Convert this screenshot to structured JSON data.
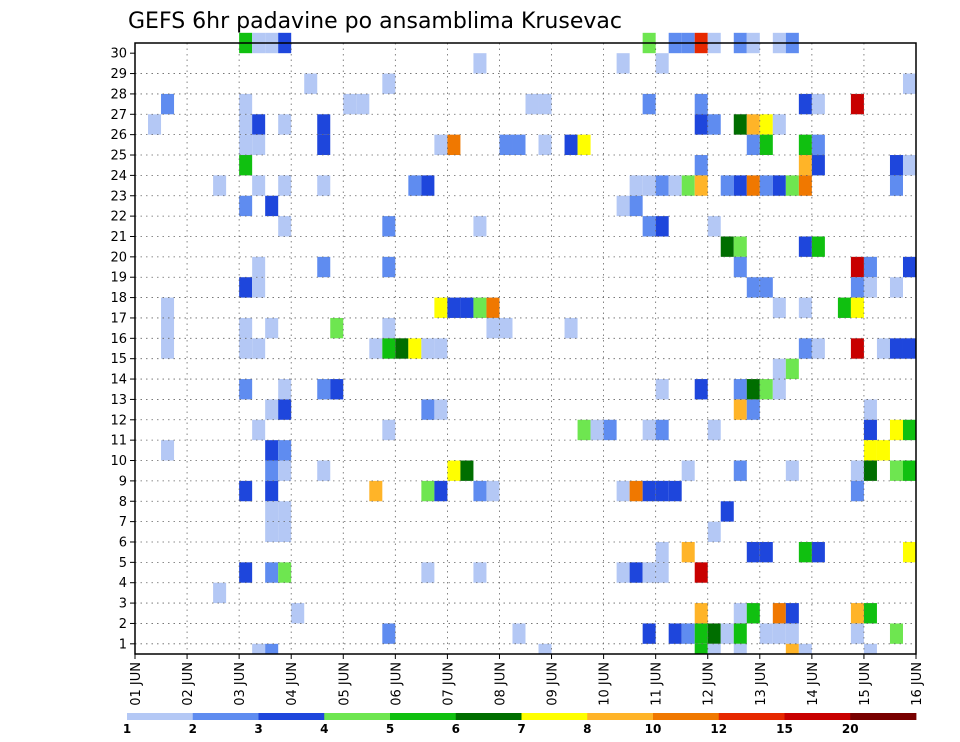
{
  "chart_data": {
    "type": "heatmap",
    "title": "GEFS 6hr padavine po ansamblima Krusevac",
    "xlabel": "",
    "ylabel": "",
    "x_tick_labels": [
      "01 JUN",
      "02 JUN",
      "03 JUN",
      "04 JUN",
      "05 JUN",
      "06 JUN",
      "07 JUN",
      "08 JUN",
      "09 JUN",
      "10 JUN",
      "11 JUN",
      "12 JUN",
      "13 JUN",
      "14 JUN",
      "15 JUN",
      "16 JUN"
    ],
    "y_tick_labels": [
      "1",
      "2",
      "3",
      "4",
      "5",
      "6",
      "7",
      "8",
      "9",
      "10",
      "11",
      "12",
      "13",
      "14",
      "15",
      "16",
      "17",
      "18",
      "19",
      "20",
      "21",
      "22",
      "23",
      "24",
      "25",
      "26",
      "27",
      "28",
      "29",
      "30"
    ],
    "x_unit": "6-hour step from 01 JUN 00Z",
    "steps_per_day": 4,
    "n_steps": 60,
    "n_members": 30,
    "grid": "dotted",
    "legend": {
      "placement": "bottom",
      "labels": [
        "1",
        "2",
        "3",
        "4",
        "5",
        "6",
        "7",
        "8",
        "10",
        "12",
        "15",
        "20"
      ],
      "colors": [
        "#b4c8f5",
        "#5f8cf0",
        "#1e46dc",
        "#6ee650",
        "#10c010",
        "#006e00",
        "#ffff00",
        "#ffb428",
        "#f07800",
        "#e62800",
        "#c80000",
        "#780000"
      ]
    },
    "levels": {
      "1": "#b4c8f5",
      "2": "#5f8cf0",
      "3": "#1e46dc",
      "4": "#6ee650",
      "5": "#10c010",
      "6": "#006e00",
      "7": "#ffff00",
      "8": "#ffb428",
      "10": "#f07800",
      "12": "#e62800",
      "15": "#c80000",
      "20": "#780000"
    },
    "cells": [
      [
        30,
        8,
        5
      ],
      [
        30,
        9,
        1
      ],
      [
        30,
        10,
        1
      ],
      [
        30,
        11,
        3
      ],
      [
        30,
        39,
        4
      ],
      [
        30,
        41,
        2
      ],
      [
        30,
        42,
        2
      ],
      [
        30,
        43,
        12
      ],
      [
        30,
        44,
        1
      ],
      [
        30,
        46,
        2
      ],
      [
        30,
        47,
        1
      ],
      [
        30,
        49,
        1
      ],
      [
        30,
        50,
        2
      ],
      [
        29,
        26,
        1
      ],
      [
        29,
        37,
        1
      ],
      [
        29,
        40,
        1
      ],
      [
        28,
        13,
        1
      ],
      [
        28,
        19,
        1
      ],
      [
        28,
        59,
        1
      ],
      [
        27,
        2,
        2
      ],
      [
        27,
        8,
        1
      ],
      [
        27,
        16,
        1
      ],
      [
        27,
        17,
        1
      ],
      [
        27,
        30,
        1
      ],
      [
        27,
        31,
        1
      ],
      [
        27,
        39,
        2
      ],
      [
        27,
        43,
        2
      ],
      [
        27,
        51,
        3
      ],
      [
        27,
        52,
        1
      ],
      [
        27,
        55,
        15
      ],
      [
        26,
        1,
        1
      ],
      [
        26,
        8,
        1
      ],
      [
        26,
        9,
        3
      ],
      [
        26,
        11,
        1
      ],
      [
        26,
        14,
        3
      ],
      [
        26,
        43,
        3
      ],
      [
        26,
        44,
        2
      ],
      [
        26,
        46,
        6
      ],
      [
        26,
        47,
        8
      ],
      [
        26,
        48,
        7
      ],
      [
        26,
        49,
        1
      ],
      [
        25,
        8,
        1
      ],
      [
        25,
        9,
        1
      ],
      [
        25,
        14,
        3
      ],
      [
        25,
        23,
        1
      ],
      [
        25,
        24,
        10
      ],
      [
        25,
        28,
        2
      ],
      [
        25,
        29,
        2
      ],
      [
        25,
        31,
        1
      ],
      [
        25,
        33,
        3
      ],
      [
        25,
        34,
        7
      ],
      [
        25,
        47,
        2
      ],
      [
        25,
        48,
        5
      ],
      [
        25,
        51,
        5
      ],
      [
        25,
        52,
        2
      ],
      [
        24,
        8,
        5
      ],
      [
        24,
        43,
        2
      ],
      [
        24,
        51,
        8
      ],
      [
        24,
        52,
        3
      ],
      [
        24,
        58,
        3
      ],
      [
        24,
        59,
        1
      ],
      [
        23,
        6,
        1
      ],
      [
        23,
        9,
        1
      ],
      [
        23,
        11,
        1
      ],
      [
        23,
        14,
        1
      ],
      [
        23,
        21,
        2
      ],
      [
        23,
        22,
        3
      ],
      [
        23,
        38,
        1
      ],
      [
        23,
        39,
        1
      ],
      [
        23,
        40,
        2
      ],
      [
        23,
        41,
        1
      ],
      [
        23,
        42,
        4
      ],
      [
        23,
        43,
        8
      ],
      [
        23,
        45,
        2
      ],
      [
        23,
        46,
        3
      ],
      [
        23,
        47,
        10
      ],
      [
        23,
        48,
        2
      ],
      [
        23,
        49,
        3
      ],
      [
        23,
        50,
        4
      ],
      [
        23,
        51,
        10
      ],
      [
        23,
        58,
        2
      ],
      [
        22,
        8,
        2
      ],
      [
        22,
        10,
        3
      ],
      [
        22,
        37,
        1
      ],
      [
        22,
        38,
        2
      ],
      [
        21,
        11,
        1
      ],
      [
        21,
        19,
        2
      ],
      [
        21,
        26,
        1
      ],
      [
        21,
        39,
        2
      ],
      [
        21,
        40,
        3
      ],
      [
        21,
        44,
        1
      ],
      [
        20,
        45,
        6
      ],
      [
        20,
        46,
        4
      ],
      [
        20,
        51,
        3
      ],
      [
        20,
        52,
        5
      ],
      [
        19,
        9,
        1
      ],
      [
        19,
        14,
        2
      ],
      [
        19,
        19,
        2
      ],
      [
        19,
        46,
        2
      ],
      [
        19,
        55,
        15
      ],
      [
        19,
        56,
        2
      ],
      [
        19,
        59,
        3
      ],
      [
        18,
        8,
        3
      ],
      [
        18,
        9,
        1
      ],
      [
        18,
        47,
        2
      ],
      [
        18,
        48,
        2
      ],
      [
        18,
        55,
        2
      ],
      [
        18,
        56,
        1
      ],
      [
        18,
        58,
        1
      ],
      [
        17,
        2,
        1
      ],
      [
        17,
        23,
        7
      ],
      [
        17,
        24,
        3
      ],
      [
        17,
        25,
        3
      ],
      [
        17,
        26,
        4
      ],
      [
        17,
        27,
        10
      ],
      [
        17,
        49,
        1
      ],
      [
        17,
        51,
        1
      ],
      [
        17,
        54,
        5
      ],
      [
        17,
        55,
        7
      ],
      [
        16,
        2,
        1
      ],
      [
        16,
        8,
        1
      ],
      [
        16,
        10,
        1
      ],
      [
        16,
        15,
        4
      ],
      [
        16,
        19,
        1
      ],
      [
        16,
        27,
        1
      ],
      [
        16,
        28,
        1
      ],
      [
        16,
        33,
        1
      ],
      [
        15,
        2,
        1
      ],
      [
        15,
        8,
        1
      ],
      [
        15,
        9,
        1
      ],
      [
        15,
        18,
        1
      ],
      [
        15,
        19,
        5
      ],
      [
        15,
        20,
        6
      ],
      [
        15,
        21,
        7
      ],
      [
        15,
        22,
        1
      ],
      [
        15,
        23,
        1
      ],
      [
        15,
        51,
        2
      ],
      [
        15,
        52,
        1
      ],
      [
        15,
        55,
        15
      ],
      [
        15,
        57,
        1
      ],
      [
        15,
        58,
        3
      ],
      [
        15,
        59,
        3
      ],
      [
        14,
        49,
        1
      ],
      [
        14,
        50,
        4
      ],
      [
        13,
        8,
        2
      ],
      [
        13,
        11,
        1
      ],
      [
        13,
        14,
        2
      ],
      [
        13,
        15,
        3
      ],
      [
        13,
        40,
        1
      ],
      [
        13,
        43,
        3
      ],
      [
        13,
        46,
        2
      ],
      [
        13,
        47,
        6
      ],
      [
        13,
        48,
        4
      ],
      [
        13,
        49,
        1
      ],
      [
        12,
        10,
        1
      ],
      [
        12,
        11,
        3
      ],
      [
        12,
        22,
        2
      ],
      [
        12,
        23,
        1
      ],
      [
        12,
        46,
        8
      ],
      [
        12,
        47,
        2
      ],
      [
        12,
        56,
        1
      ],
      [
        11,
        9,
        1
      ],
      [
        11,
        19,
        1
      ],
      [
        11,
        34,
        4
      ],
      [
        11,
        35,
        1
      ],
      [
        11,
        36,
        2
      ],
      [
        11,
        39,
        1
      ],
      [
        11,
        40,
        2
      ],
      [
        11,
        44,
        1
      ],
      [
        11,
        56,
        3
      ],
      [
        11,
        58,
        7
      ],
      [
        11,
        59,
        5
      ],
      [
        10,
        2,
        1
      ],
      [
        10,
        10,
        3
      ],
      [
        10,
        11,
        2
      ],
      [
        10,
        56,
        7
      ],
      [
        10,
        57,
        7
      ],
      [
        9,
        10,
        2
      ],
      [
        9,
        11,
        1
      ],
      [
        9,
        14,
        1
      ],
      [
        9,
        24,
        7
      ],
      [
        9,
        25,
        6
      ],
      [
        9,
        42,
        1
      ],
      [
        9,
        46,
        2
      ],
      [
        9,
        50,
        1
      ],
      [
        9,
        55,
        1
      ],
      [
        9,
        56,
        6
      ],
      [
        9,
        58,
        4
      ],
      [
        9,
        59,
        5
      ],
      [
        8,
        8,
        3
      ],
      [
        8,
        10,
        3
      ],
      [
        8,
        18,
        8
      ],
      [
        8,
        22,
        4
      ],
      [
        8,
        23,
        3
      ],
      [
        8,
        26,
        2
      ],
      [
        8,
        27,
        1
      ],
      [
        8,
        37,
        1
      ],
      [
        8,
        38,
        10
      ],
      [
        8,
        39,
        3
      ],
      [
        8,
        40,
        3
      ],
      [
        8,
        41,
        3
      ],
      [
        8,
        55,
        2
      ],
      [
        7,
        10,
        1
      ],
      [
        7,
        11,
        1
      ],
      [
        7,
        45,
        3
      ],
      [
        6,
        10,
        1
      ],
      [
        6,
        11,
        1
      ],
      [
        6,
        44,
        1
      ],
      [
        5,
        40,
        1
      ],
      [
        5,
        42,
        8
      ],
      [
        5,
        47,
        3
      ],
      [
        5,
        48,
        3
      ],
      [
        5,
        51,
        5
      ],
      [
        5,
        52,
        3
      ],
      [
        5,
        59,
        7
      ],
      [
        4,
        8,
        3
      ],
      [
        4,
        10,
        2
      ],
      [
        4,
        11,
        4
      ],
      [
        4,
        22,
        1
      ],
      [
        4,
        26,
        1
      ],
      [
        4,
        37,
        1
      ],
      [
        4,
        38,
        3
      ],
      [
        4,
        39,
        1
      ],
      [
        4,
        40,
        1
      ],
      [
        4,
        43,
        15
      ],
      [
        3,
        6,
        1
      ],
      [
        2,
        12,
        1
      ],
      [
        2,
        43,
        8
      ],
      [
        2,
        46,
        1
      ],
      [
        2,
        47,
        5
      ],
      [
        2,
        49,
        10
      ],
      [
        2,
        50,
        3
      ],
      [
        2,
        55,
        8
      ],
      [
        2,
        56,
        5
      ],
      [
        1,
        19,
        2
      ],
      [
        1,
        29,
        1
      ],
      [
        1,
        39,
        3
      ],
      [
        1,
        41,
        3
      ],
      [
        1,
        42,
        2
      ],
      [
        1,
        43,
        5
      ],
      [
        1,
        44,
        6
      ],
      [
        1,
        45,
        1
      ],
      [
        1,
        46,
        5
      ],
      [
        1,
        48,
        1
      ],
      [
        1,
        49,
        1
      ],
      [
        1,
        50,
        1
      ],
      [
        1,
        55,
        1
      ],
      [
        1,
        58,
        4
      ],
      [
        0,
        9,
        1
      ],
      [
        0,
        10,
        2
      ],
      [
        0,
        31,
        1
      ],
      [
        0,
        43,
        5
      ],
      [
        0,
        44,
        1
      ],
      [
        0,
        46,
        1
      ],
      [
        0,
        50,
        8
      ],
      [
        0,
        51,
        1
      ],
      [
        0,
        56,
        1
      ]
    ]
  }
}
